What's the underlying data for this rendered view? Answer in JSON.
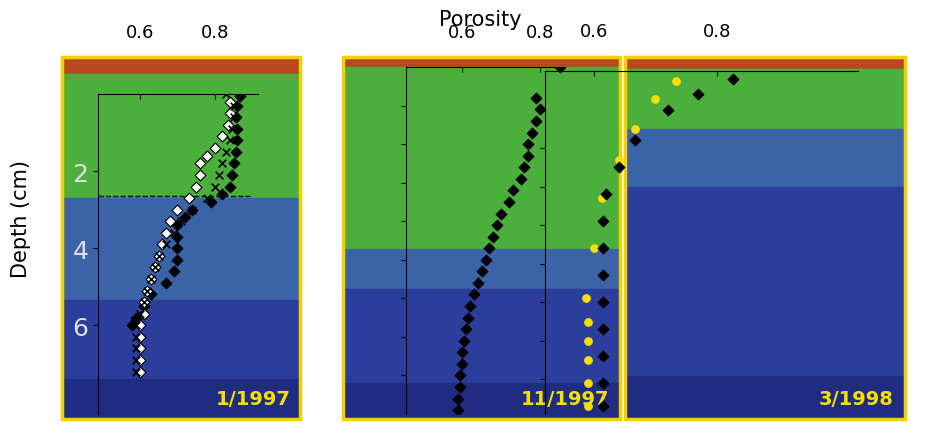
{
  "chart_data": [
    {
      "type": "scatter",
      "title": "1/1997",
      "xlabel": "Porosity",
      "ylabel": "Depth (cm)",
      "xlim": [
        0.488,
        0.915
      ],
      "ylim": [
        8.3,
        0
      ],
      "xticks": [
        0.6,
        0.8
      ],
      "yticks": [
        2,
        4,
        6
      ],
      "tick_labels": true,
      "hlines": [
        2.65
      ],
      "series": [
        {
          "color": "#000000",
          "marker": "diamond",
          "x": [
            0.867,
            0.86,
            0.855,
            0.86,
            0.86,
            0.855,
            0.85,
            0.845,
            0.84,
            0.82,
            0.79,
            0.74,
            0.72,
            0.7,
            0.7,
            0.7,
            0.7,
            0.69,
            0.67,
            0.63,
            0.61,
            0.59,
            0.58
          ],
          "values": [
            0.05,
            0.3,
            0.6,
            0.9,
            1.2,
            1.5,
            1.8,
            2.1,
            2.4,
            2.6,
            2.8,
            3.0,
            3.2,
            3.4,
            3.7,
            4.0,
            4.3,
            4.6,
            4.9,
            5.2,
            5.5,
            5.8,
            6.0
          ]
        },
        {
          "color": "#ffffff",
          "marker": "diamond",
          "x": [
            0.84,
            0.84,
            0.835,
            0.82,
            0.8,
            0.78,
            0.76,
            0.76,
            0.75,
            0.73,
            0.7,
            0.68,
            0.67,
            0.66,
            0.65,
            0.64,
            0.63,
            0.62,
            0.61,
            0.61,
            0.6,
            0.6,
            0.6,
            0.6,
            0.6
          ],
          "values": [
            0.2,
            0.5,
            0.8,
            1.1,
            1.4,
            1.6,
            1.8,
            2.1,
            2.4,
            2.7,
            3.0,
            3.3,
            3.6,
            3.9,
            4.2,
            4.5,
            4.8,
            5.1,
            5.4,
            5.7,
            6.0,
            6.3,
            6.6,
            6.9,
            7.2
          ]
        },
        {
          "color": "#000000",
          "marker": "x",
          "x": [
            0.83,
            0.85,
            0.85,
            0.845,
            0.84,
            0.83,
            0.82,
            0.81,
            0.8,
            0.78,
            0.74,
            0.71,
            0.69,
            0.67,
            0.65,
            0.64,
            0.63,
            0.62,
            0.61,
            0.6,
            0.59,
            0.59,
            0.59,
            0.59,
            0.59
          ],
          "values": [
            0.0,
            0.3,
            0.6,
            0.9,
            1.2,
            1.5,
            1.8,
            2.1,
            2.4,
            2.7,
            3.0,
            3.3,
            3.6,
            3.9,
            4.2,
            4.5,
            4.8,
            5.1,
            5.4,
            5.7,
            6.0,
            6.3,
            6.6,
            6.9,
            7.2
          ]
        }
      ]
    },
    {
      "type": "scatter",
      "title": "11/1997",
      "xlim": [
        0.456,
        0.864
      ],
      "ylim": [
        9.0,
        0
      ],
      "xticks": [
        0.6,
        0.8
      ],
      "yticks": [
        1,
        2,
        3,
        4,
        5,
        6,
        7,
        8
      ],
      "tick_labels": "x",
      "series": [
        {
          "color": "#000000",
          "marker": "diamond",
          "x": [
            0.85,
            0.79,
            0.8,
            0.79,
            0.78,
            0.77,
            0.77,
            0.76,
            0.75,
            0.73,
            0.72,
            0.7,
            0.69,
            0.68,
            0.67,
            0.66,
            0.65,
            0.64,
            0.63,
            0.62,
            0.615,
            0.61,
            0.605,
            0.6,
            0.6,
            0.595,
            0.595,
            0.59,
            0.59
          ],
          "values": [
            0.0,
            0.8,
            1.1,
            1.4,
            1.7,
            2.0,
            2.3,
            2.6,
            2.9,
            3.2,
            3.5,
            3.8,
            4.1,
            4.4,
            4.7,
            5.0,
            5.3,
            5.6,
            5.9,
            6.2,
            6.5,
            6.8,
            7.1,
            7.4,
            7.7,
            8.0,
            8.3,
            8.6,
            8.9
          ]
        }
      ]
    },
    {
      "type": "scatter",
      "title": "3/1998",
      "xlim": [
        0.52,
        1.03
      ],
      "ylim": [
        8.9,
        0
      ],
      "xticks": [
        0.6,
        0.8
      ],
      "yticks": [
        1,
        2,
        3,
        4,
        5,
        6,
        7,
        8
      ],
      "tick_labels": "x",
      "series": [
        {
          "color": "#f5e000",
          "marker": "circle",
          "x": [
            0.733,
            0.7,
            0.667,
            0.64,
            0.613,
            0.6,
            0.587,
            0.59,
            0.59,
            0.59,
            0.59,
            0.59
          ],
          "values": [
            0.26,
            0.73,
            1.5,
            2.3,
            3.3,
            4.6,
            5.9,
            6.5,
            7.0,
            7.5,
            8.1,
            8.7
          ]
        },
        {
          "color": "#000000",
          "marker": "diamond",
          "x": [
            0.827,
            0.77,
            0.72,
            0.667,
            0.64,
            0.62,
            0.615,
            0.615,
            0.615,
            0.615,
            0.615,
            0.615,
            0.615,
            0.615
          ],
          "values": [
            0.2,
            0.6,
            1.0,
            1.8,
            2.5,
            3.2,
            3.9,
            4.6,
            5.3,
            6.0,
            6.7,
            7.4,
            8.1,
            8.7
          ]
        }
      ]
    }
  ]
}
